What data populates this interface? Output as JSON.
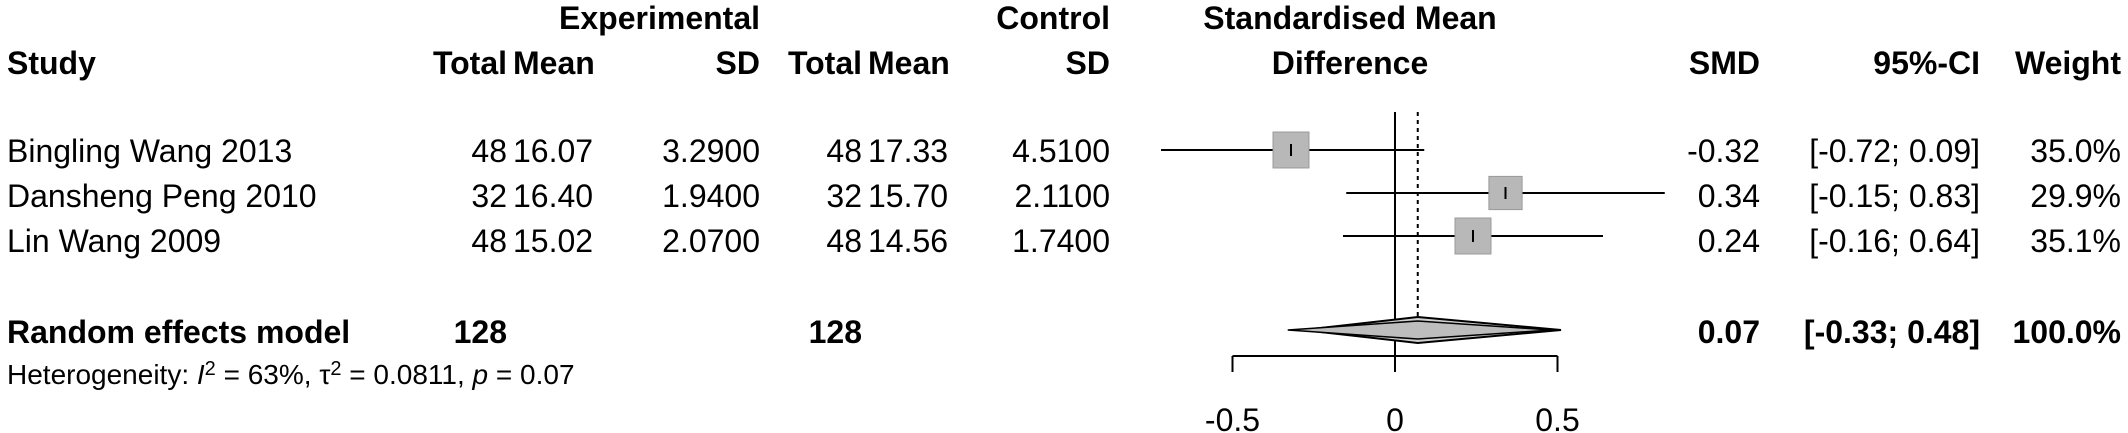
{
  "headers": {
    "experimental": "Experimental",
    "control": "Control",
    "study": "Study",
    "total_e": "Total",
    "mean_e": "Mean",
    "sd_e": "SD",
    "total_c": "Total",
    "mean_c": "Mean",
    "sd_c": "SD",
    "smd_title_1": "Standardised Mean",
    "smd_title_2": "Difference",
    "smd": "SMD",
    "ci": "95%-CI",
    "weight": "Weight"
  },
  "pooled": {
    "label": "Random effects model",
    "total_e": "128",
    "total_c": "128",
    "smd": "0.07",
    "ci": "[-0.33; 0.48]",
    "weight": "100.0%"
  },
  "heterogeneity": {
    "prefix": "Heterogeneity: ",
    "i2_sym": "I",
    "i2_sup": "2",
    "i2_val": " = 63%, ",
    "tau_sym": "τ",
    "tau_sup": "2",
    "tau_val": " = 0.0811, ",
    "p_sym": "p",
    "p_val": " = 0.07"
  },
  "chart_data": {
    "type": "forest",
    "x_ticks": [
      -0.5,
      0,
      0.5
    ],
    "x_tick_labels": [
      "-0.5",
      "0",
      "0.5"
    ],
    "xlim": [
      -0.5,
      0.5
    ],
    "null_line": 0,
    "pooled": {
      "smd": 0.07,
      "lower": -0.33,
      "upper": 0.48,
      "pred_lower": -0.5,
      "pred_upper": 0.48
    },
    "studies": [
      {
        "study": "Bingling Wang 2013",
        "total_e": "48",
        "mean_e": "16.07",
        "sd_e": "3.2900",
        "total_c": "48",
        "mean_c": "17.33",
        "sd_c": "4.5100",
        "smd": -0.32,
        "lower": -0.72,
        "upper": 0.09,
        "smd_text": "-0.32",
        "ci_text": "[-0.72; 0.09]",
        "weight": 35.0,
        "weight_text": "35.0%"
      },
      {
        "study": "Dansheng Peng 2010",
        "total_e": "32",
        "mean_e": "16.40",
        "sd_e": "1.9400",
        "total_c": "32",
        "mean_c": "15.70",
        "sd_c": "2.1100",
        "smd": 0.34,
        "lower": -0.15,
        "upper": 0.83,
        "smd_text": "0.34",
        "ci_text": "[-0.15; 0.83]",
        "weight": 29.9,
        "weight_text": "29.9%"
      },
      {
        "study": "Lin Wang 2009",
        "total_e": "48",
        "mean_e": "15.02",
        "sd_e": "2.0700",
        "total_c": "48",
        "mean_c": "14.56",
        "sd_c": "1.7400",
        "smd": 0.24,
        "lower": -0.16,
        "upper": 0.64,
        "smd_text": "0.24",
        "ci_text": "[-0.16; 0.64]",
        "weight": 35.1,
        "weight_text": "35.1%"
      }
    ]
  }
}
